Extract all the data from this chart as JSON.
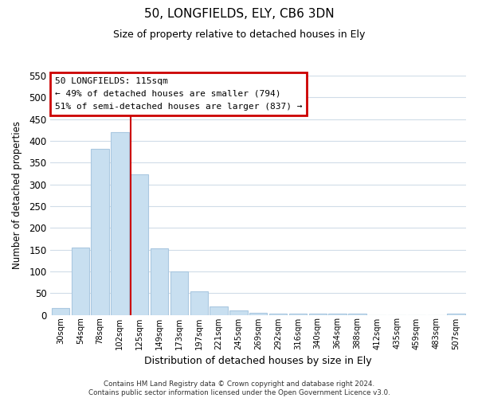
{
  "title": "50, LONGFIELDS, ELY, CB6 3DN",
  "subtitle": "Size of property relative to detached houses in Ely",
  "xlabel": "Distribution of detached houses by size in Ely",
  "ylabel": "Number of detached properties",
  "bar_color": "#c8dff0",
  "bar_edge_color": "#aac8e0",
  "bg_color": "#ffffff",
  "grid_color": "#d0dce8",
  "annotation_box_color": "#ffffff",
  "annotation_box_edge": "#cc0000",
  "vline_color": "#cc0000",
  "annotation_lines": [
    "50 LONGFIELDS: 115sqm",
    "← 49% of detached houses are smaller (794)",
    "51% of semi-detached houses are larger (837) →"
  ],
  "categories": [
    "30sqm",
    "54sqm",
    "78sqm",
    "102sqm",
    "125sqm",
    "149sqm",
    "173sqm",
    "197sqm",
    "221sqm",
    "245sqm",
    "269sqm",
    "292sqm",
    "316sqm",
    "340sqm",
    "364sqm",
    "388sqm",
    "412sqm",
    "435sqm",
    "459sqm",
    "483sqm",
    "507sqm"
  ],
  "values": [
    15,
    155,
    382,
    420,
    323,
    152,
    100,
    54,
    20,
    10,
    5,
    2,
    2,
    2,
    2,
    2,
    0,
    0,
    0,
    0,
    2
  ],
  "vline_x_index": 3.5,
  "ylim": [
    0,
    550
  ],
  "yticks": [
    0,
    50,
    100,
    150,
    200,
    250,
    300,
    350,
    400,
    450,
    500,
    550
  ],
  "footer_lines": [
    "Contains HM Land Registry data © Crown copyright and database right 2024.",
    "Contains public sector information licensed under the Open Government Licence v3.0."
  ],
  "figsize": [
    6.0,
    5.0
  ],
  "dpi": 100
}
